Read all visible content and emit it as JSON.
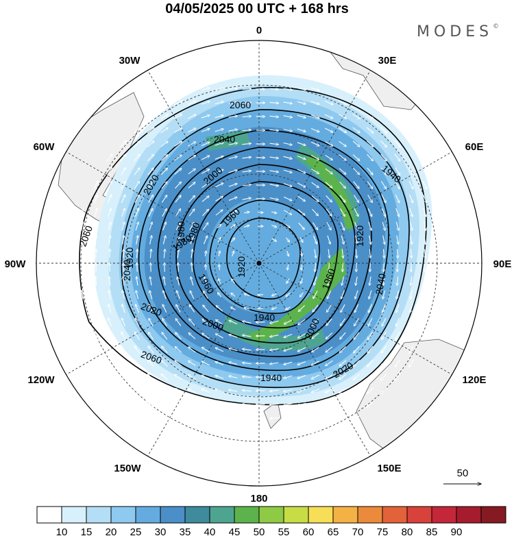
{
  "header": {
    "title": "04/05/2025  00 UTC  + 168 hrs",
    "brand": "MODES",
    "brand_mark": "©"
  },
  "map": {
    "projection": "polar-stereographic-south",
    "longitude_labels": {
      "top": "0",
      "top_right": "30E",
      "upper_right": "60E",
      "right": "90E",
      "lower_right": "120E",
      "bottom_right": "150E",
      "bottom": "180",
      "bottom_left": "150W",
      "lower_left": "120W",
      "left": "90W",
      "upper_left": "60W",
      "top_left": "30W"
    },
    "contour_labels": [
      "2060",
      "2040",
      "2020",
      "2000",
      "1980",
      "1960",
      "1940",
      "1920",
      "2060",
      "2040",
      "2020",
      "2000",
      "1980",
      "1960",
      "1940",
      "1920",
      "2060",
      "2040",
      "2020",
      "2000",
      "1980",
      "1960",
      "1940",
      "1920"
    ],
    "vector_reference": "50",
    "colors": {
      "land": "#efefef",
      "coast": "#555555",
      "shade_10_15": "#d7f0fb",
      "shade_15_20": "#b4def5",
      "shade_20_25": "#8ec9ef",
      "shade_25_30": "#64acdf",
      "shade_30_35": "#4a8fc8",
      "shade_35_40": "#4ea58f",
      "shade_40_45": "#5cb34c",
      "contour": "#000000",
      "vectors": "#ffffff"
    },
    "icons": [
      "pole-dot-icon",
      "reference-arrow-icon"
    ]
  },
  "colorbar": {
    "labels": [
      "10",
      "15",
      "20",
      "25",
      "30",
      "35",
      "40",
      "45",
      "50",
      "55",
      "60",
      "65",
      "70",
      "75",
      "80",
      "85",
      "90"
    ],
    "colors": [
      "#ffffff",
      "#d7f0fb",
      "#b4def5",
      "#8ec9ef",
      "#64acdf",
      "#4a8fc8",
      "#3f8a9c",
      "#4ea58f",
      "#5cb34c",
      "#8fca45",
      "#c8dc46",
      "#f6df56",
      "#f4b245",
      "#ec8a3c",
      "#e4623a",
      "#d8423a",
      "#c4263a",
      "#a61c2e",
      "#861a22"
    ]
  }
}
